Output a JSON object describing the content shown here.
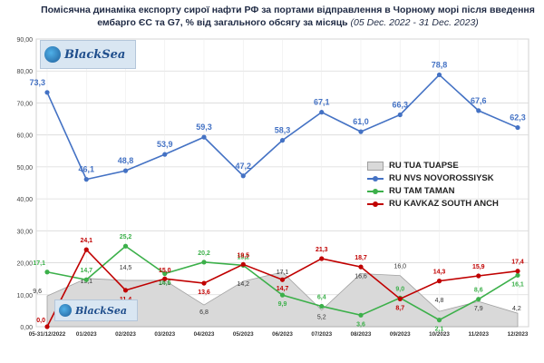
{
  "chart_data": {
    "type": "line",
    "title": "Помісячна динаміка експорту сирої нафти РФ за портами відправлення в Чорному морі після введення ембарго ЄС та G7, % від загального обсягу за місяць",
    "subtitle": "(05 Dec. 2022 - 31 Dec. 2023)",
    "xlabel": "",
    "ylabel": "",
    "ylim": [
      0,
      90
    ],
    "yticks": [
      "0,00",
      "10,00",
      "20,00",
      "30,00",
      "40,00",
      "50,00",
      "60,00",
      "70,00",
      "80,00",
      "90,00"
    ],
    "categories": [
      "05-31/12/2022",
      "01/2023",
      "02/2023",
      "03/2023",
      "04/2023",
      "05/2023",
      "06/2023",
      "07/2023",
      "08/2023",
      "09/2023",
      "10/2023",
      "11/2023",
      "12/2023"
    ],
    "grid": true,
    "legend_position": "right",
    "series": [
      {
        "name": "RU TUA TUAPSE",
        "kind": "area",
        "color": "#d9d9d9",
        "values": [
          9.6,
          15.1,
          14.5,
          14.5,
          6.8,
          14.2,
          17.1,
          5.2,
          16.6,
          16.0,
          4.8,
          7.9,
          4.2
        ],
        "labels": [
          "9,6",
          "15,1",
          "14,5",
          "14,5",
          "6,8",
          "14,2",
          "17,1",
          "5,2",
          "16,6",
          "16,0",
          "4,8",
          "7,9",
          "4,2"
        ]
      },
      {
        "name": "RU NVS NOVOROSSIYSK",
        "kind": "line",
        "color": "#4472c4",
        "values": [
          73.3,
          46.1,
          48.8,
          53.9,
          59.3,
          47.2,
          58.3,
          67.1,
          61.0,
          66.3,
          78.8,
          67.6,
          62.3
        ],
        "labels": [
          "73,3",
          "46,1",
          "48,8",
          "53,9",
          "59,3",
          "47,2",
          "58,3",
          "67,1",
          "61,0",
          "66,3",
          "78,8",
          "67,6",
          "62,3"
        ]
      },
      {
        "name": "RU TAM TAMAN",
        "kind": "line",
        "color": "#3cb04a",
        "values": [
          17.1,
          14.7,
          25.2,
          16.6,
          20.2,
          19.2,
          9.9,
          6.4,
          3.6,
          9.0,
          2.1,
          8.6,
          16.1
        ],
        "labels": [
          "17,1",
          "14,7",
          "25,2",
          "16,6",
          "20,2",
          "19,2",
          "9,9",
          "6,4",
          "3,6",
          "9,0",
          "2,1",
          "8,6",
          "16,1"
        ]
      },
      {
        "name": "RU KAVKAZ SOUTH ANCH",
        "kind": "line",
        "color": "#c00000",
        "values": [
          0.0,
          24.1,
          11.4,
          15.0,
          13.6,
          19.5,
          14.7,
          21.3,
          18.7,
          8.7,
          14.3,
          15.9,
          17.4
        ],
        "labels": [
          "0,0",
          "24,1",
          "11,4",
          "15,0",
          "13,6",
          "19,5",
          "14,7",
          "21,3",
          "18,7",
          "8,7",
          "14,3",
          "15,9",
          "17,4"
        ]
      }
    ]
  },
  "legend": {
    "tuapse": "RU TUA TUAPSE",
    "novorossiysk": "RU NVS NOVOROSSIYSK",
    "taman": "RU TAM TAMAN",
    "kavkaz": "RU KAVKAZ SOUTH ANCH"
  },
  "logo": {
    "text": "BlackSea"
  },
  "colors": {
    "novorossiysk": "#4472c4",
    "taman": "#3cb04a",
    "kavkaz": "#c00000",
    "tuapse_fill": "#d9d9d9",
    "tuapse_stroke": "#a0a0a0"
  }
}
